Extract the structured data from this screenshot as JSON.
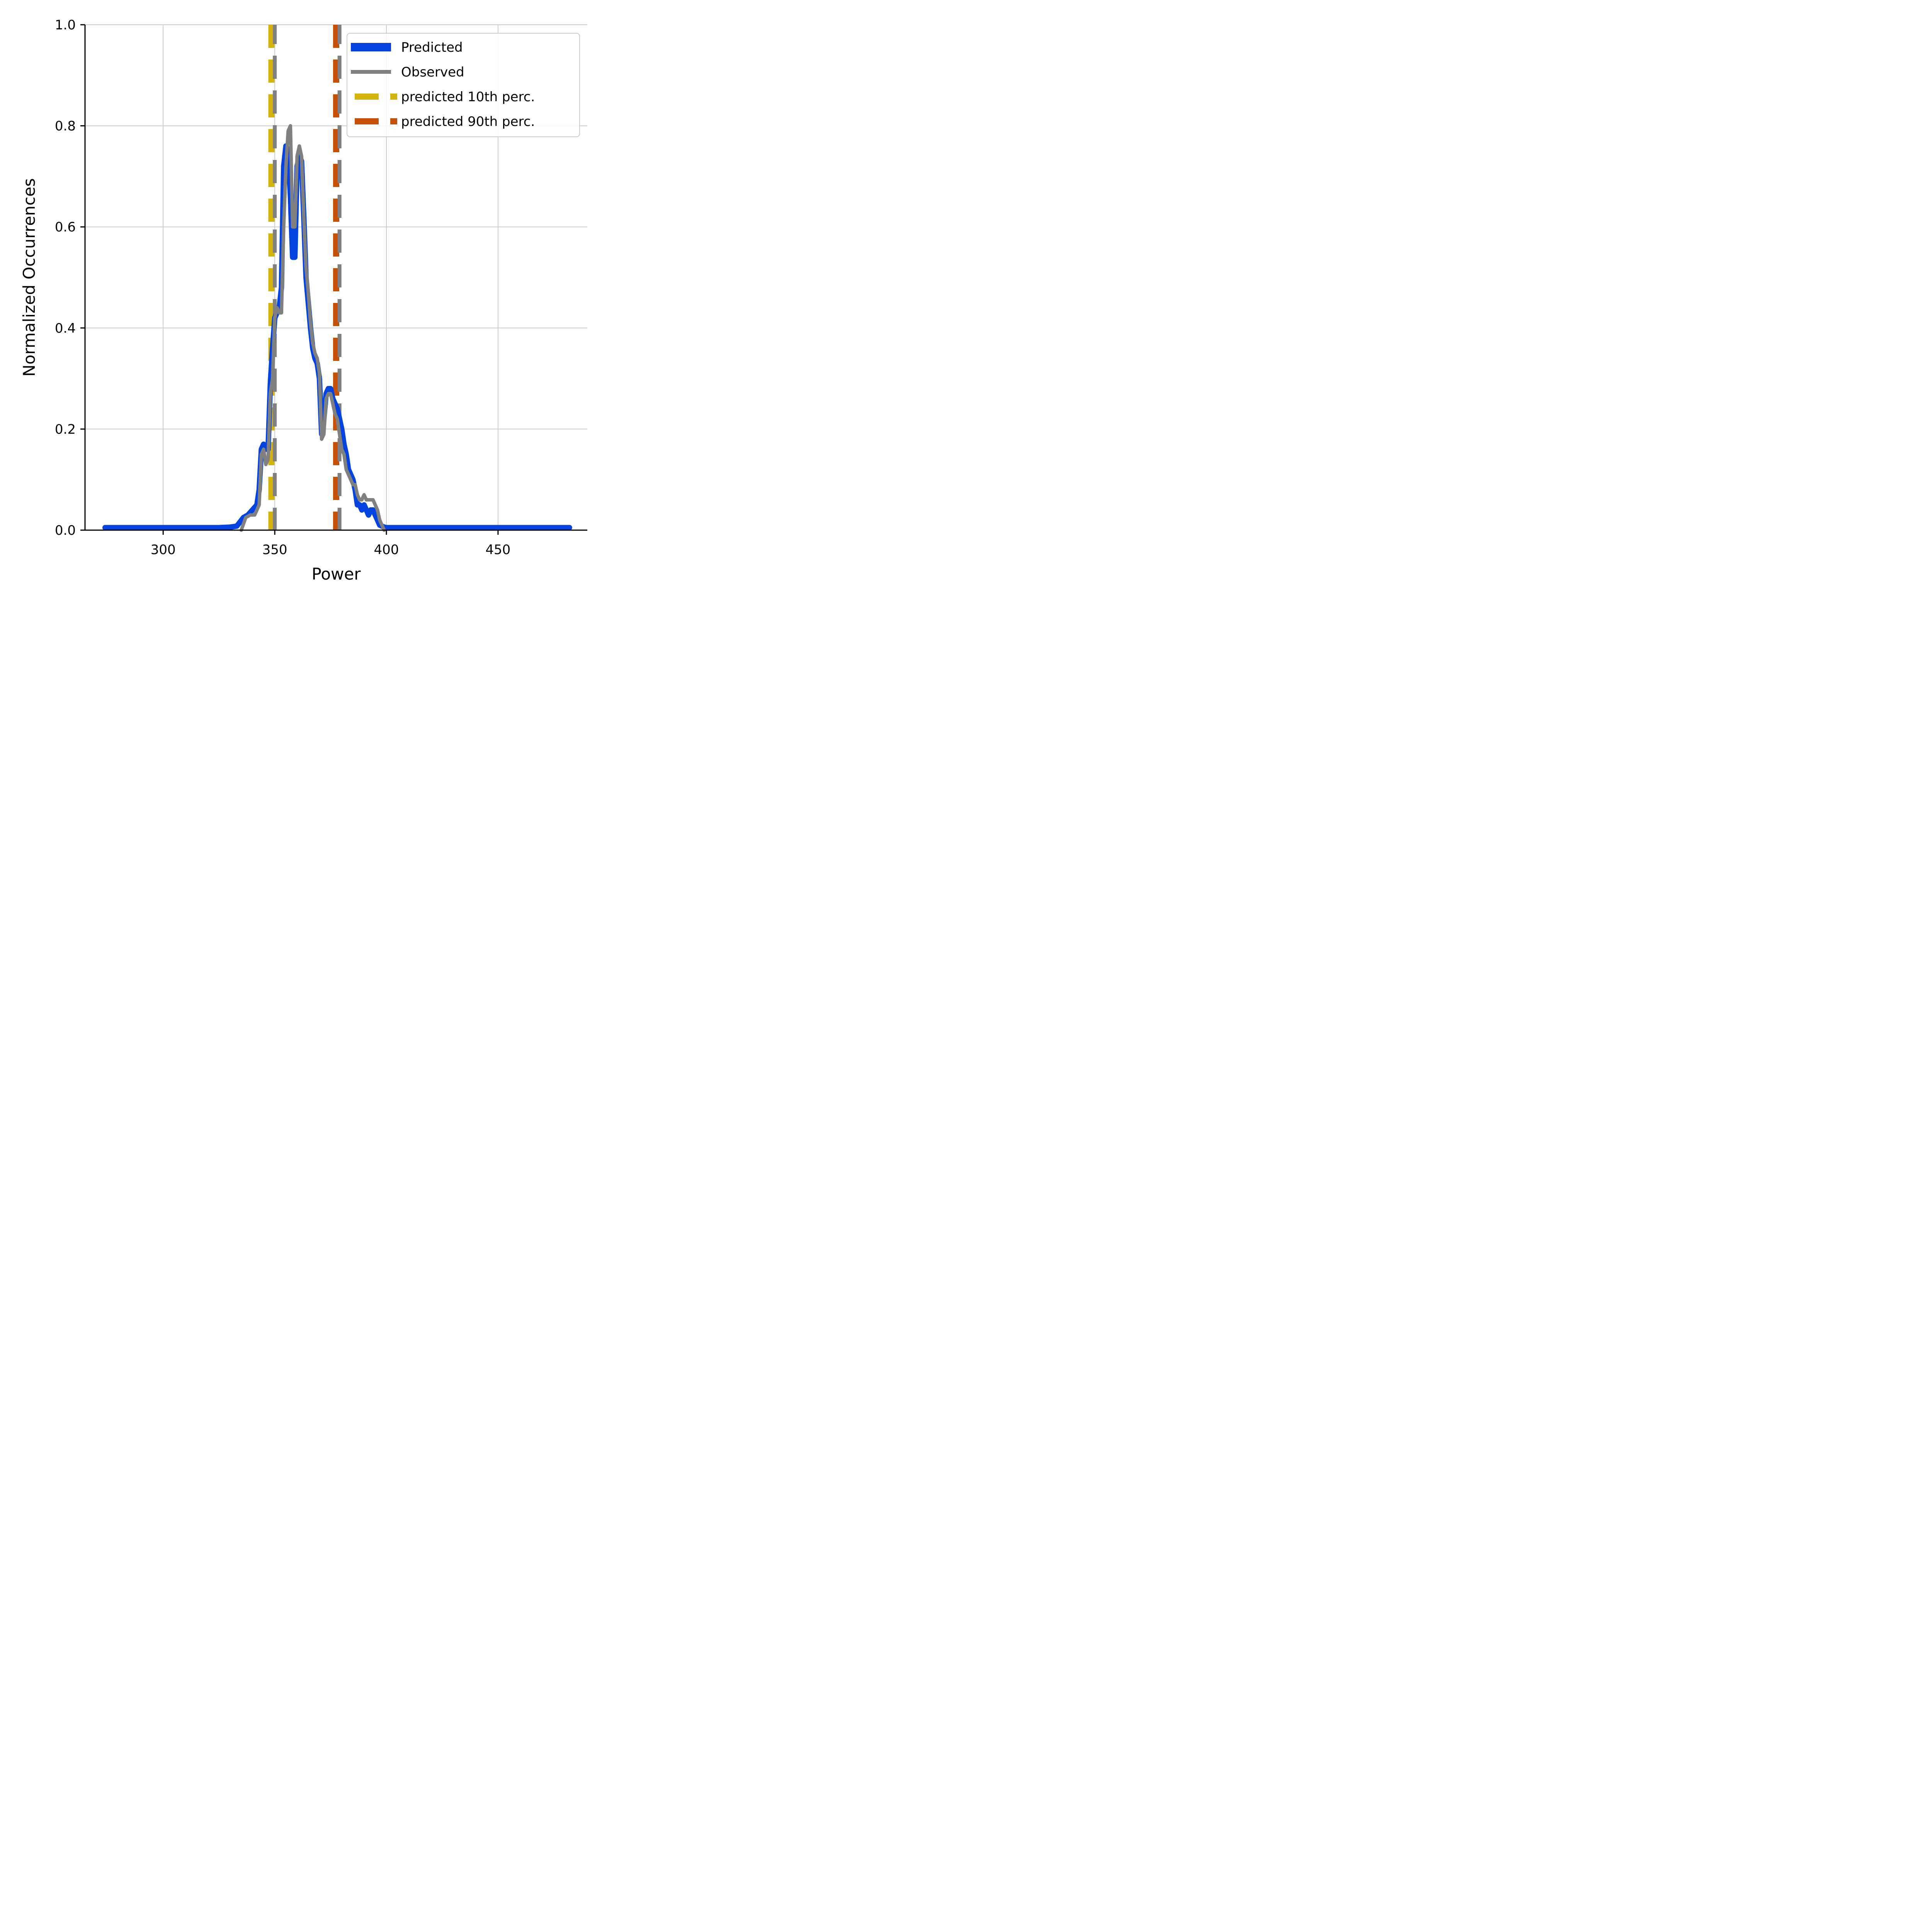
{
  "chart_data": {
    "type": "line",
    "xlabel": "Power",
    "ylabel": "Normalized Occurrences",
    "xlim": [
      265,
      490
    ],
    "ylim": [
      0,
      1.0
    ],
    "xticks": [
      300,
      350,
      400,
      450
    ],
    "yticks": [
      0.0,
      0.2,
      0.4,
      0.6,
      0.8,
      1.0
    ],
    "xtick_labels": [
      "300",
      "350",
      "400",
      "450"
    ],
    "ytick_labels": [
      "0.0",
      "0.2",
      "0.4",
      "0.6",
      "0.8",
      "1.0"
    ],
    "grid": true,
    "legend_position": "top-right",
    "series": [
      {
        "name": "Predicted",
        "color": "#0343df",
        "style": "solid-thick",
        "x": [
          274,
          300,
          320,
          325,
          330,
          333,
          336,
          338,
          340,
          342,
          343,
          344,
          345,
          346,
          347,
          348,
          349,
          350,
          351,
          352,
          353,
          354,
          355,
          356,
          357,
          358,
          359,
          360,
          361,
          362,
          363,
          364,
          365,
          366,
          367,
          368,
          369,
          370,
          371,
          372,
          373,
          374,
          375,
          376,
          377,
          378,
          379,
          380,
          381,
          382,
          383,
          384,
          385,
          386,
          387,
          388,
          389,
          390,
          391,
          392,
          393,
          394,
          395,
          396,
          397,
          398,
          399,
          400,
          402,
          405,
          410,
          420,
          450,
          482
        ],
        "values": [
          0.005,
          0.005,
          0.005,
          0.005,
          0.006,
          0.008,
          0.025,
          0.03,
          0.04,
          0.05,
          0.08,
          0.16,
          0.17,
          0.16,
          0.16,
          0.29,
          0.36,
          0.42,
          0.43,
          0.44,
          0.48,
          0.72,
          0.76,
          0.75,
          0.66,
          0.54,
          0.54,
          0.72,
          0.74,
          0.73,
          0.62,
          0.5,
          0.45,
          0.4,
          0.36,
          0.34,
          0.33,
          0.3,
          0.19,
          0.22,
          0.27,
          0.28,
          0.28,
          0.26,
          0.25,
          0.24,
          0.22,
          0.2,
          0.17,
          0.15,
          0.12,
          0.11,
          0.1,
          0.08,
          0.05,
          0.05,
          0.04,
          0.05,
          0.04,
          0.03,
          0.04,
          0.04,
          0.03,
          0.02,
          0.01,
          0.008,
          0.006,
          0.005,
          0.005,
          0.005,
          0.005,
          0.005,
          0.005,
          0.005
        ]
      },
      {
        "name": "Observed",
        "color": "#808080",
        "style": "solid",
        "x": [
          335,
          337,
          339,
          341,
          343,
          344,
          345,
          346,
          347,
          348,
          349,
          350,
          351,
          352,
          353,
          354,
          355,
          356,
          357,
          358,
          359,
          360,
          361,
          362,
          363,
          364,
          365,
          366,
          367,
          368,
          369,
          370,
          371,
          372,
          373,
          374,
          375,
          376,
          377,
          378,
          379,
          380,
          381,
          382,
          383,
          384,
          385,
          386,
          387,
          388,
          389,
          390,
          391,
          392,
          393,
          394,
          395,
          396,
          397,
          398,
          399
        ],
        "values": [
          0.0,
          0.025,
          0.03,
          0.03,
          0.05,
          0.15,
          0.16,
          0.13,
          0.14,
          0.27,
          0.3,
          0.42,
          0.44,
          0.43,
          0.43,
          0.6,
          0.72,
          0.79,
          0.8,
          0.6,
          0.6,
          0.74,
          0.76,
          0.74,
          0.62,
          0.52,
          0.47,
          0.41,
          0.37,
          0.35,
          0.34,
          0.31,
          0.18,
          0.19,
          0.26,
          0.27,
          0.27,
          0.25,
          0.23,
          0.22,
          0.19,
          0.16,
          0.15,
          0.12,
          0.11,
          0.1,
          0.09,
          0.09,
          0.07,
          0.06,
          0.06,
          0.07,
          0.06,
          0.06,
          0.06,
          0.06,
          0.05,
          0.04,
          0.02,
          0.01,
          0.0
        ]
      }
    ],
    "vlines": [
      {
        "name": "predicted 10th perc.",
        "x": 348.5,
        "color": "#d4b30a",
        "style": "dashed"
      },
      {
        "name": "observed 10th",
        "x": 350,
        "color": "#808080",
        "style": "dashed"
      },
      {
        "name": "predicted 90th perc.",
        "x": 377.5,
        "color": "#c65102",
        "style": "dashed"
      },
      {
        "name": "observed 90th",
        "x": 379,
        "color": "#808080",
        "style": "dashed"
      }
    ],
    "legend": [
      {
        "label": "Predicted",
        "color": "#0343df",
        "style": "solid-thick"
      },
      {
        "label": "Observed",
        "color": "#808080",
        "style": "solid"
      },
      {
        "label": "predicted 10th perc.",
        "color": "#d4b30a",
        "style": "dashed"
      },
      {
        "label": "predicted 90th perc.",
        "color": "#c65102",
        "style": "dashed"
      }
    ]
  }
}
